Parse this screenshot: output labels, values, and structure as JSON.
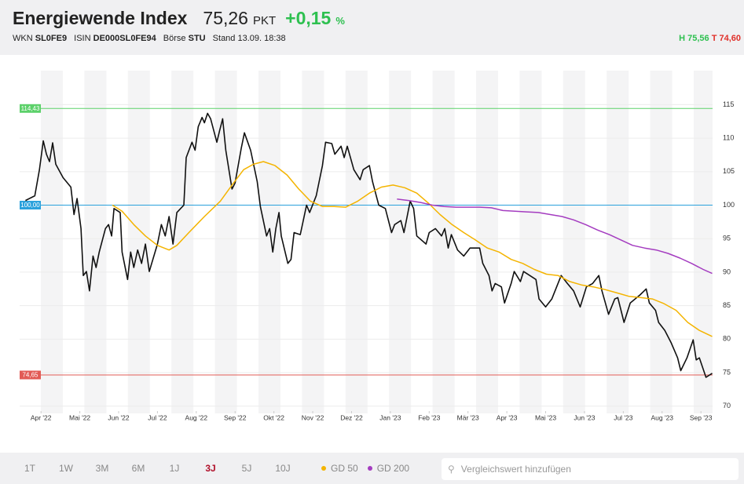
{
  "header": {
    "title": "Energiewende Index",
    "price": "75,26",
    "unit": "PKT",
    "change": "+0,15",
    "change_unit": "%",
    "wkn_label": "WKN",
    "wkn": "SL0FE9",
    "isin_label": "ISIN",
    "isin": "DE000SL0FE94",
    "exchange_label": "Börse",
    "exchange": "STU",
    "stand": "Stand 13.09. 18:38",
    "high": "H 75,56",
    "low": "T 74,60"
  },
  "toolbar": {
    "ranges": [
      "1T",
      "1W",
      "3M",
      "6M",
      "1J",
      "3J",
      "5J",
      "10J"
    ],
    "active": 5,
    "search_placeholder": "Vergleichswert hinzufügen"
  },
  "chart_data": {
    "type": "line",
    "xlim": [
      -0.55,
      17.3
    ],
    "ylim": [
      69.5,
      119.5
    ],
    "grid": true,
    "yticks": [
      70,
      75,
      80,
      85,
      90,
      95,
      100,
      105,
      110,
      115
    ],
    "xticks": [
      {
        "value": 0,
        "label": "Apr '22"
      },
      {
        "value": 1,
        "label": "Mai '22"
      },
      {
        "value": 2,
        "label": "Jun '22"
      },
      {
        "value": 3,
        "label": "Jul '22"
      },
      {
        "value": 4,
        "label": "Aug '22"
      },
      {
        "value": 5,
        "label": "Sep '22"
      },
      {
        "value": 6,
        "label": "Okt '22"
      },
      {
        "value": 7,
        "label": "Nov '22"
      },
      {
        "value": 8,
        "label": "Dez '22"
      },
      {
        "value": 9,
        "label": "Jan '23"
      },
      {
        "value": 10,
        "label": "Feb '23"
      },
      {
        "value": 11,
        "label": "Mär '23"
      },
      {
        "value": 12,
        "label": "Apr '23"
      },
      {
        "value": 13,
        "label": "Mai '23"
      },
      {
        "value": 14,
        "label": "Jun '23"
      },
      {
        "value": 15,
        "label": "Jul '23"
      },
      {
        "value": 16,
        "label": "Aug '23"
      },
      {
        "value": 17,
        "label": "Sep '23"
      }
    ],
    "reference_lines": [
      {
        "value": 114.43,
        "label": "114,43",
        "color": "#5cd16a"
      },
      {
        "value": 100.0,
        "label": "100,00",
        "color": "#2aa1dc"
      },
      {
        "value": 74.65,
        "label": "74,65",
        "color": "#e25b55"
      }
    ],
    "series": [
      {
        "color": "#111111",
        "x": [
          -0.4,
          -0.16,
          -0.04,
          0.06,
          0.14,
          0.22,
          0.3,
          0.38,
          0.57,
          0.77,
          0.85,
          0.93,
          1.03,
          1.09,
          1.17,
          1.25,
          1.34,
          1.42,
          1.5,
          1.66,
          1.74,
          1.82,
          1.88,
          2.04,
          2.09,
          2.23,
          2.31,
          2.39,
          2.49,
          2.59,
          2.69,
          2.79,
          3.0,
          3.1,
          3.2,
          3.3,
          3.4,
          3.5,
          3.68,
          3.74,
          3.89,
          3.97,
          4.05,
          4.15,
          4.21,
          4.29,
          4.37,
          4.53,
          4.6,
          4.68,
          4.76,
          4.92,
          5.0,
          5.16,
          5.24,
          5.4,
          5.57,
          5.65,
          5.81,
          5.89,
          5.97,
          6.05,
          6.13,
          6.19,
          6.36,
          6.44,
          6.52,
          6.68,
          6.84,
          6.92,
          7.09,
          7.25,
          7.33,
          7.49,
          7.57,
          7.73,
          7.81,
          7.89,
          8.06,
          8.22,
          8.3,
          8.46,
          8.54,
          8.7,
          8.87,
          9.03,
          9.11,
          9.27,
          9.35,
          9.51,
          9.6,
          9.68,
          9.92,
          10.0,
          10.16,
          10.32,
          10.4,
          10.49,
          10.57,
          10.73,
          10.89,
          11.05,
          11.3,
          11.38,
          11.54,
          11.62,
          11.7,
          11.86,
          11.94,
          12.11,
          12.19,
          12.35,
          12.43,
          12.59,
          12.75,
          12.83,
          13.0,
          13.16,
          13.4,
          13.56,
          13.72,
          13.89,
          14.05,
          14.21,
          14.37,
          14.45,
          14.62,
          14.78,
          14.86,
          15.02,
          15.18,
          15.43,
          15.59,
          15.67,
          15.83,
          15.91,
          16.07,
          16.23,
          16.4,
          16.48,
          16.64,
          16.8,
          16.88,
          16.96,
          17.13,
          17.29
        ],
        "values": [
          100.7,
          101.4,
          105.3,
          109.6,
          107.6,
          106.5,
          109.3,
          106.1,
          104.1,
          102.7,
          98.6,
          101.0,
          96.5,
          89.5,
          90.1,
          87.2,
          92.4,
          90.7,
          93.0,
          96.5,
          97.1,
          95.4,
          99.5,
          98.9,
          93.0,
          88.9,
          93.0,
          90.7,
          93.3,
          91.3,
          94.2,
          90.1,
          94.2,
          97.1,
          95.4,
          98.3,
          94.2,
          98.9,
          100.0,
          107.1,
          109.4,
          108.2,
          111.7,
          113.1,
          112.3,
          113.7,
          112.9,
          109.4,
          111.1,
          112.9,
          108.2,
          102.4,
          103.3,
          108.5,
          110.8,
          108.2,
          103.5,
          99.8,
          95.4,
          96.5,
          93.0,
          96.5,
          98.9,
          95.4,
          91.3,
          91.9,
          95.9,
          95.6,
          100.0,
          98.9,
          101.4,
          105.9,
          109.4,
          109.2,
          107.6,
          108.8,
          107.1,
          108.8,
          105.3,
          103.8,
          105.3,
          105.9,
          103.5,
          100.0,
          99.5,
          95.9,
          97.1,
          97.7,
          95.9,
          100.6,
          99.5,
          95.4,
          94.2,
          95.9,
          96.5,
          95.4,
          96.5,
          93.6,
          95.6,
          93.3,
          92.4,
          93.6,
          93.6,
          91.3,
          89.5,
          87.2,
          88.3,
          87.8,
          85.4,
          88.3,
          90.1,
          88.6,
          90.1,
          89.5,
          88.9,
          86.0,
          84.8,
          86.0,
          89.5,
          88.3,
          87.2,
          84.8,
          87.8,
          88.3,
          89.5,
          87.2,
          83.7,
          86.0,
          86.2,
          82.5,
          85.4,
          86.6,
          87.5,
          85.4,
          84.3,
          82.5,
          81.3,
          79.5,
          77.2,
          75.3,
          77.2,
          79.9,
          76.9,
          77.2,
          74.3,
          74.9
        ]
      },
      {
        "name": "GD 50",
        "color": "#f4b400",
        "x": [
          1.84,
          2.09,
          2.39,
          2.69,
          3.0,
          3.3,
          3.5,
          3.81,
          4.21,
          4.62,
          4.92,
          5.22,
          5.47,
          5.73,
          6.03,
          6.34,
          6.64,
          6.94,
          7.25,
          7.55,
          7.85,
          8.16,
          8.46,
          8.77,
          9.07,
          9.37,
          9.68,
          9.98,
          10.28,
          10.59,
          10.89,
          11.19,
          11.5,
          11.8,
          12.11,
          12.41,
          12.71,
          13.02,
          13.32,
          13.62,
          13.92,
          14.23,
          14.53,
          14.84,
          15.14,
          15.45,
          15.75,
          16.05,
          16.36,
          16.66,
          16.96,
          17.29
        ],
        "values": [
          100.0,
          99.1,
          97.1,
          95.4,
          94.0,
          93.3,
          94.0,
          95.9,
          98.3,
          100.6,
          103.0,
          105.3,
          106.1,
          106.5,
          105.9,
          104.5,
          102.4,
          100.6,
          99.8,
          99.8,
          99.7,
          100.6,
          101.8,
          102.7,
          103.0,
          102.6,
          101.8,
          100.3,
          98.6,
          97.1,
          95.9,
          94.8,
          93.6,
          93.0,
          91.9,
          91.3,
          90.4,
          89.7,
          89.5,
          88.6,
          88.1,
          87.8,
          87.4,
          86.9,
          86.4,
          86.2,
          86.0,
          85.3,
          84.3,
          82.5,
          81.3,
          80.4
        ]
      },
      {
        "name": "GD 200",
        "color": "#a43cc0",
        "x": [
          9.17,
          9.47,
          9.78,
          10.08,
          10.38,
          10.69,
          10.99,
          11.3,
          11.6,
          11.9,
          12.21,
          12.51,
          12.81,
          13.12,
          13.42,
          13.72,
          14.03,
          14.33,
          14.64,
          14.94,
          15.24,
          15.55,
          15.85,
          16.15,
          16.46,
          16.76,
          17.06,
          17.29
        ],
        "values": [
          100.9,
          100.7,
          100.4,
          100.0,
          99.8,
          99.7,
          99.7,
          99.7,
          99.6,
          99.2,
          99.1,
          99.0,
          98.9,
          98.6,
          98.3,
          97.8,
          97.1,
          96.3,
          95.6,
          94.8,
          94.0,
          93.6,
          93.3,
          92.8,
          92.1,
          91.3,
          90.4,
          89.8
        ]
      }
    ]
  }
}
